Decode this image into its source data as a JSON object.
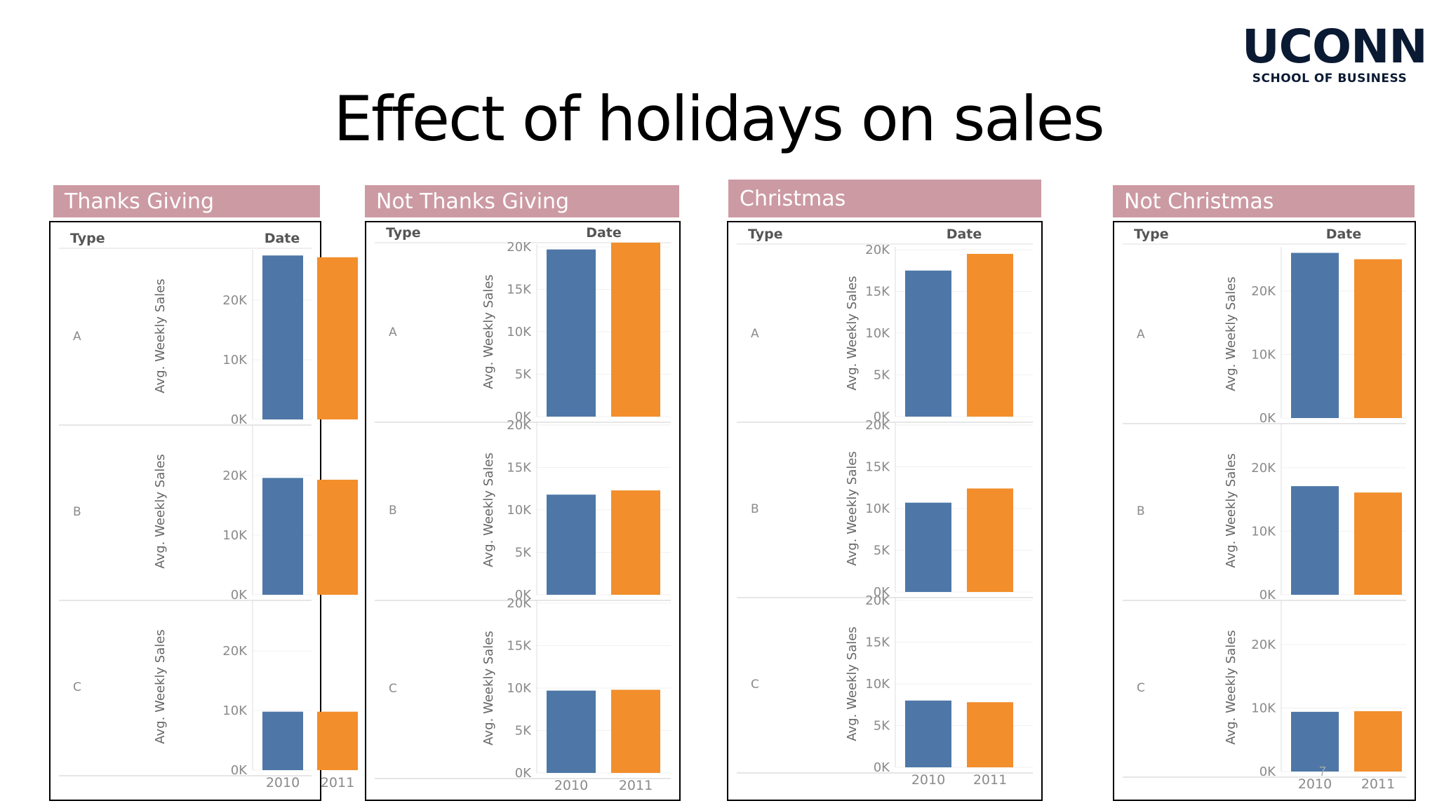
{
  "title": "Effect of holidays on sales",
  "logo": {
    "main": "UCONN",
    "sub": "SCHOOL OF BUSINESS"
  },
  "page_number": "7",
  "colors": {
    "y2010": "#4e77a7",
    "y2011": "#f28e2c",
    "header_bg": "#cc9aa3"
  },
  "chart_data": [
    {
      "type": "bar",
      "title": "Thanks Giving",
      "row_header": "Type",
      "col_header": "Date",
      "ylabel": "Avg. Weekly Sales",
      "categories": [
        "2010",
        "2011"
      ],
      "ylim": [
        0,
        28000
      ],
      "yticks": [
        {
          "v": 0,
          "t": "0K"
        },
        {
          "v": 10000,
          "t": "10K"
        },
        {
          "v": 20000,
          "t": "20K"
        }
      ],
      "rows": [
        {
          "label": "A",
          "values": [
            27500,
            27200
          ]
        },
        {
          "label": "B",
          "values": [
            19600,
            19300
          ]
        },
        {
          "label": "C",
          "values": [
            9800,
            9800
          ]
        }
      ]
    },
    {
      "type": "bar",
      "title": "Not Thanks Giving",
      "row_header": "Type",
      "col_header": "Date",
      "ylabel": "Avg. Weekly Sales",
      "categories": [
        "2010",
        "2011"
      ],
      "ylim": [
        0,
        20000
      ],
      "yticks": [
        {
          "v": 0,
          "t": "0K"
        },
        {
          "v": 5000,
          "t": "5K"
        },
        {
          "v": 10000,
          "t": "10K"
        },
        {
          "v": 15000,
          "t": "15K"
        },
        {
          "v": 20000,
          "t": "20K"
        }
      ],
      "rows": [
        {
          "label": "A",
          "values": [
            19700,
            20500
          ]
        },
        {
          "label": "B",
          "values": [
            11800,
            12300
          ]
        },
        {
          "label": "C",
          "values": [
            9700,
            9800
          ]
        }
      ]
    },
    {
      "type": "bar",
      "title": "Christmas",
      "row_header": "Type",
      "col_header": "Date",
      "ylabel": "Avg. Weekly Sales",
      "categories": [
        "2010",
        "2011"
      ],
      "ylim": [
        0,
        20000
      ],
      "yticks": [
        {
          "v": 0,
          "t": "0K"
        },
        {
          "v": 5000,
          "t": "5K"
        },
        {
          "v": 10000,
          "t": "10K"
        },
        {
          "v": 15000,
          "t": "15K"
        },
        {
          "v": 20000,
          "t": "20K"
        }
      ],
      "rows": [
        {
          "label": "A",
          "values": [
            17500,
            19500
          ]
        },
        {
          "label": "B",
          "values": [
            10700,
            12400
          ]
        },
        {
          "label": "C",
          "values": [
            8000,
            7800
          ]
        }
      ]
    },
    {
      "type": "bar",
      "title": "Not Christmas",
      "row_header": "Type",
      "col_header": "Date",
      "ylabel": "Avg. Weekly Sales",
      "categories": [
        "2010",
        "2011"
      ],
      "ylim": [
        0,
        26500
      ],
      "yticks": [
        {
          "v": 0,
          "t": "0K"
        },
        {
          "v": 10000,
          "t": "10K"
        },
        {
          "v": 20000,
          "t": "20K"
        }
      ],
      "rows": [
        {
          "label": "A",
          "values": [
            26000,
            25000
          ]
        },
        {
          "label": "B",
          "values": [
            17100,
            16100
          ]
        },
        {
          "label": "C",
          "values": [
            9400,
            9500
          ]
        }
      ]
    }
  ]
}
